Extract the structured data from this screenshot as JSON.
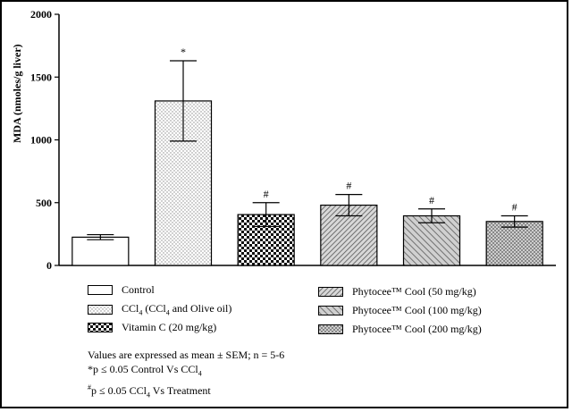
{
  "chart_data": {
    "type": "bar",
    "ylabel": "MDA (nmoles/g liver)",
    "ylim": [
      0,
      2000
    ],
    "yticks": [
      "0",
      "500",
      "1000",
      "1500",
      "2000"
    ],
    "ytick_values": [
      0,
      500,
      1000,
      1500,
      2000
    ],
    "grid": false,
    "categories": [
      "Control",
      "CCl4 (CCl4 and Olive oil)",
      "Vitamin C (20 mg/kg)",
      "Phytocee™ Cool (50 mg/kg)",
      "Phytocee™ Cool (100 mg/kg)",
      "Phytocee™ Cool (200 mg/kg)"
    ],
    "values": [
      225,
      1310,
      405,
      480,
      395,
      350
    ],
    "errors": [
      20,
      320,
      95,
      85,
      55,
      45
    ],
    "annotations": [
      "",
      "*",
      "#",
      "#",
      "#",
      "#"
    ],
    "patterns": [
      "white",
      "dots",
      "checker",
      "hatch-fine",
      "hatch-medium",
      "hatch-cross"
    ]
  },
  "legend": {
    "items": [
      {
        "pattern": "white",
        "text": "Control"
      },
      {
        "pattern": "dots",
        "text": "CCl",
        "sub": "4",
        "rest": " (CCl",
        "sub2": "4",
        "rest2": " and Olive oil)"
      },
      {
        "pattern": "checker",
        "text": "Vitamin C (20 mg/kg)"
      },
      {
        "pattern": "hatch-fine",
        "text": "Phytocee™ Cool (50 mg/kg)"
      },
      {
        "pattern": "hatch-medium",
        "text": "Phytocee™ Cool (100 mg/kg)"
      },
      {
        "pattern": "hatch-cross",
        "text": "Phytocee™ Cool (200 mg/kg)"
      }
    ]
  },
  "notes": {
    "line1": "Values are expressed as mean ± SEM; n = 5-6",
    "line2_prefix": "*p ≤ 0.05 Control Vs CCl",
    "line2_sub": "4",
    "line3_sup": "#",
    "line3_prefix": "p ≤ 0.05 CCl",
    "line3_sub": "4",
    "line3_rest": " Vs Treatment"
  }
}
